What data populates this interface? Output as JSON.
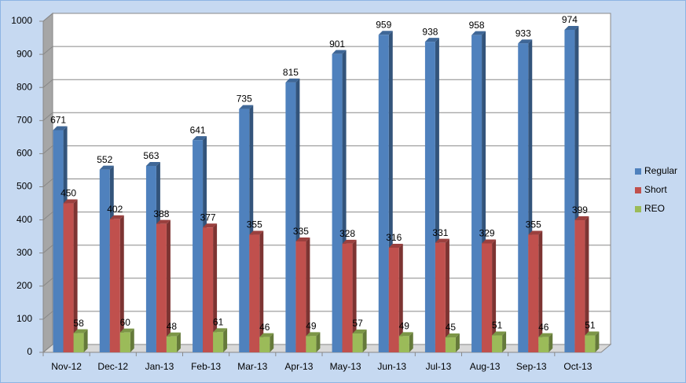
{
  "chart_data": {
    "type": "bar",
    "categories": [
      "Nov-12",
      "Dec-12",
      "Jan-13",
      "Feb-13",
      "Mar-13",
      "Apr-13",
      "May-13",
      "Jun-13",
      "Jul-13",
      "Aug-13",
      "Sep-13",
      "Oct-13"
    ],
    "series": [
      {
        "name": "Regular",
        "color": "#4f81bd",
        "values": [
          671,
          552,
          563,
          641,
          735,
          815,
          901,
          959,
          938,
          958,
          933,
          974
        ]
      },
      {
        "name": "Short",
        "color": "#c0504d",
        "values": [
          450,
          402,
          388,
          377,
          355,
          335,
          328,
          316,
          331,
          329,
          355,
          399
        ]
      },
      {
        "name": "REO",
        "color": "#9bbb59",
        "values": [
          58,
          60,
          48,
          61,
          46,
          49,
          57,
          49,
          45,
          51,
          46,
          51
        ]
      }
    ],
    "ylim": [
      0,
      1000
    ],
    "yticks": [
      0,
      100,
      200,
      300,
      400,
      500,
      600,
      700,
      800,
      900,
      1000
    ],
    "grid": true,
    "legend": "right"
  }
}
